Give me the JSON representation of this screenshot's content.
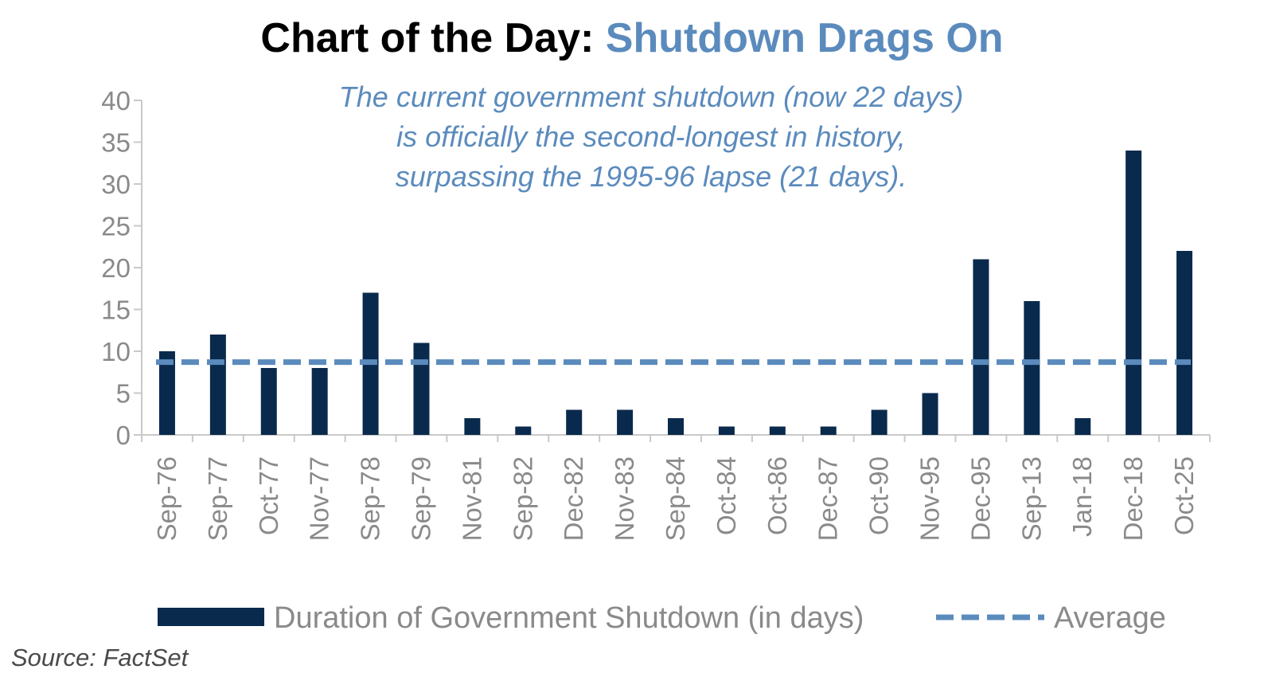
{
  "title": {
    "prefix": "Chart of the Day:",
    "highlight": "Shutdown Drags On"
  },
  "annotation": [
    "The current government shutdown (now 22 days)",
    "is officially the second-longest in history,",
    "surpassing the 1995-96 lapse (21 days)."
  ],
  "source": "Source: FactSet",
  "colors": {
    "bar": "#0a2a4d",
    "average": "#5b8bbd",
    "title_highlight": "#5b8bbd",
    "axis": "#c9c9c9",
    "tick_text": "#8a8a8a"
  },
  "chart_data": {
    "type": "bar",
    "title": "Chart of the Day: Shutdown Drags On",
    "xlabel": "",
    "ylabel": "",
    "ylim": [
      0,
      40
    ],
    "yticks": [
      0,
      5,
      10,
      15,
      20,
      25,
      30,
      35,
      40
    ],
    "categories": [
      "Sep-76",
      "Sep-77",
      "Oct-77",
      "Nov-77",
      "Sep-78",
      "Sep-79",
      "Nov-81",
      "Sep-82",
      "Dec-82",
      "Nov-83",
      "Sep-84",
      "Oct-84",
      "Oct-86",
      "Dec-87",
      "Oct-90",
      "Nov-95",
      "Dec-95",
      "Sep-13",
      "Jan-18",
      "Dec-18",
      "Oct-25"
    ],
    "series": [
      {
        "name": "Duration of Government Shutdown (in days)",
        "kind": "bar",
        "values": [
          10,
          12,
          8,
          8,
          17,
          11,
          2,
          1,
          3,
          3,
          2,
          1,
          1,
          1,
          3,
          5,
          21,
          16,
          2,
          34,
          22
        ]
      },
      {
        "name": "Average",
        "kind": "dashed-line",
        "value": 8.7
      }
    ],
    "legend": "bottom-center",
    "grid": false
  }
}
